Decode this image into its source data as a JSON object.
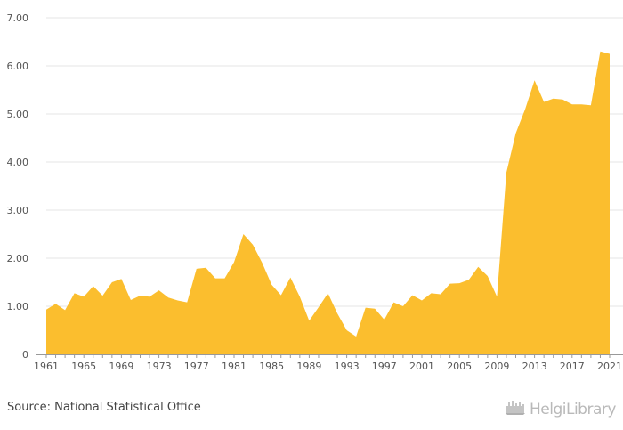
{
  "colors": {
    "area": "#FBBE2E",
    "grid": "#e6e6e6",
    "axis": "#999999"
  },
  "source": {
    "label": "Source: National Statistical Office"
  },
  "logo": {
    "icon": "helgi-library-logo-icon",
    "text": "HelgiLibrary"
  },
  "chart_data": {
    "type": "area",
    "title": "",
    "xlabel": "",
    "ylabel": "",
    "ylim": [
      0,
      7
    ],
    "xlim": [
      1961,
      2021
    ],
    "grid": true,
    "y_ticks": [
      "0",
      "1.00",
      "2.00",
      "3.00",
      "4.00",
      "5.00",
      "6.00",
      "7.00"
    ],
    "x_ticks": [
      "1961",
      "1965",
      "1969",
      "1973",
      "1977",
      "1981",
      "1985",
      "1989",
      "1993",
      "1997",
      "2001",
      "2005",
      "2009",
      "2013",
      "2017",
      "2021"
    ],
    "x": [
      1961,
      1962,
      1963,
      1964,
      1965,
      1966,
      1967,
      1968,
      1969,
      1970,
      1971,
      1972,
      1973,
      1974,
      1975,
      1976,
      1977,
      1978,
      1979,
      1980,
      1981,
      1982,
      1983,
      1984,
      1985,
      1986,
      1987,
      1988,
      1989,
      1990,
      1991,
      1992,
      1993,
      1994,
      1995,
      1996,
      1997,
      1998,
      1999,
      2000,
      2001,
      2002,
      2003,
      2004,
      2005,
      2006,
      2007,
      2008,
      2009,
      2010,
      2011,
      2012,
      2013,
      2014,
      2015,
      2016,
      2017,
      2018,
      2019,
      2020,
      2021
    ],
    "values": [
      0.93,
      1.05,
      0.92,
      1.27,
      1.2,
      1.42,
      1.22,
      1.5,
      1.57,
      1.13,
      1.22,
      1.2,
      1.33,
      1.18,
      1.12,
      1.08,
      1.78,
      1.8,
      1.58,
      1.58,
      1.92,
      2.5,
      2.28,
      1.9,
      1.45,
      1.23,
      1.6,
      1.2,
      0.7,
      0.98,
      1.27,
      0.85,
      0.5,
      0.37,
      0.97,
      0.95,
      0.72,
      1.08,
      1.0,
      1.23,
      1.12,
      1.27,
      1.25,
      1.47,
      1.48,
      1.55,
      1.82,
      1.63,
      1.2,
      3.78,
      4.6,
      5.1,
      5.7,
      5.25,
      5.32,
      5.3,
      5.2,
      5.2,
      5.18,
      6.3,
      6.25
    ]
  }
}
